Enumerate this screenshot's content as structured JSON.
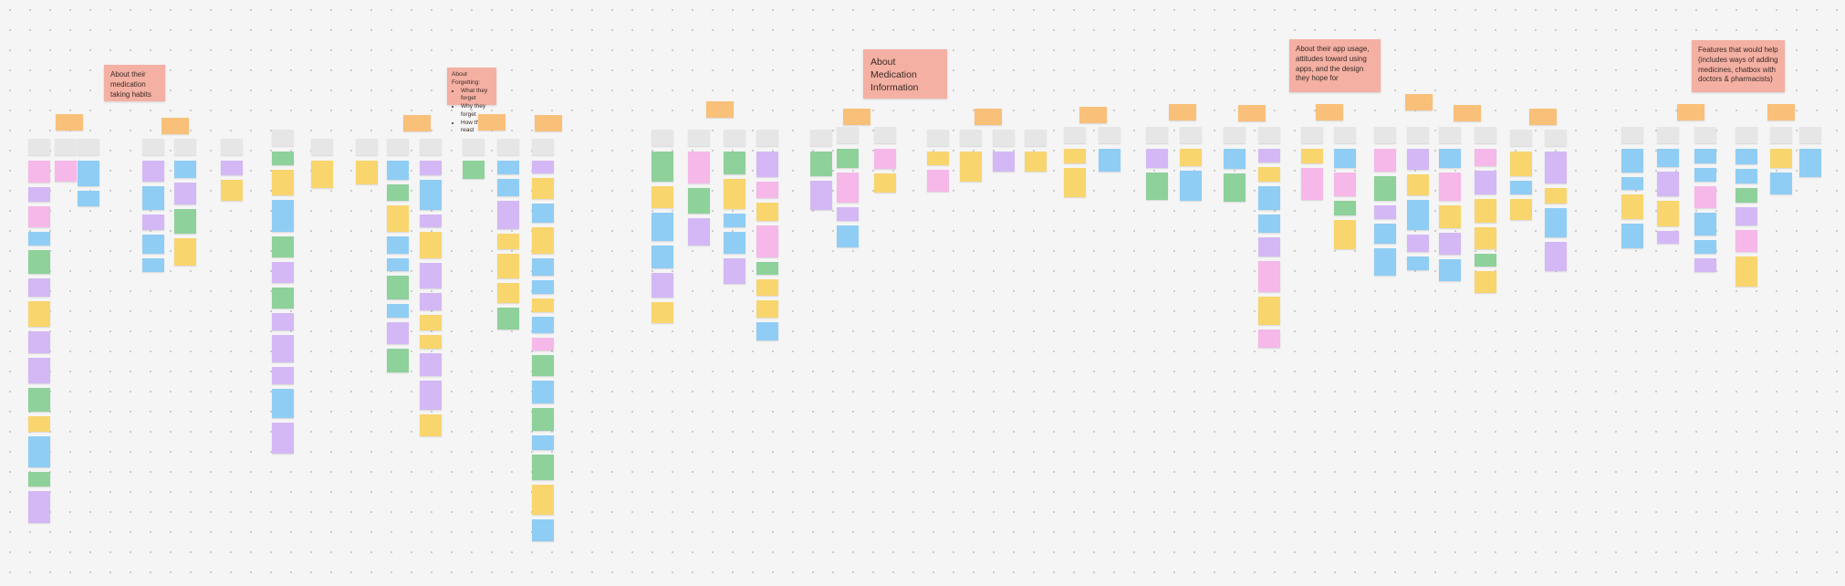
{
  "sections": [
    {
      "title": "About their medication taking habits"
    },
    {
      "title": "About Forgetting:",
      "bullets": [
        "What they forget",
        "Why they forget",
        "How they react"
      ]
    },
    {
      "title": "About Medication Information"
    },
    {
      "title": "About their app usage, attitudes toward using apps, and the design they hope for"
    },
    {
      "title": "Features that would help (includes ways of adding medicines, chatbox with doctors & pharmacists)"
    }
  ]
}
